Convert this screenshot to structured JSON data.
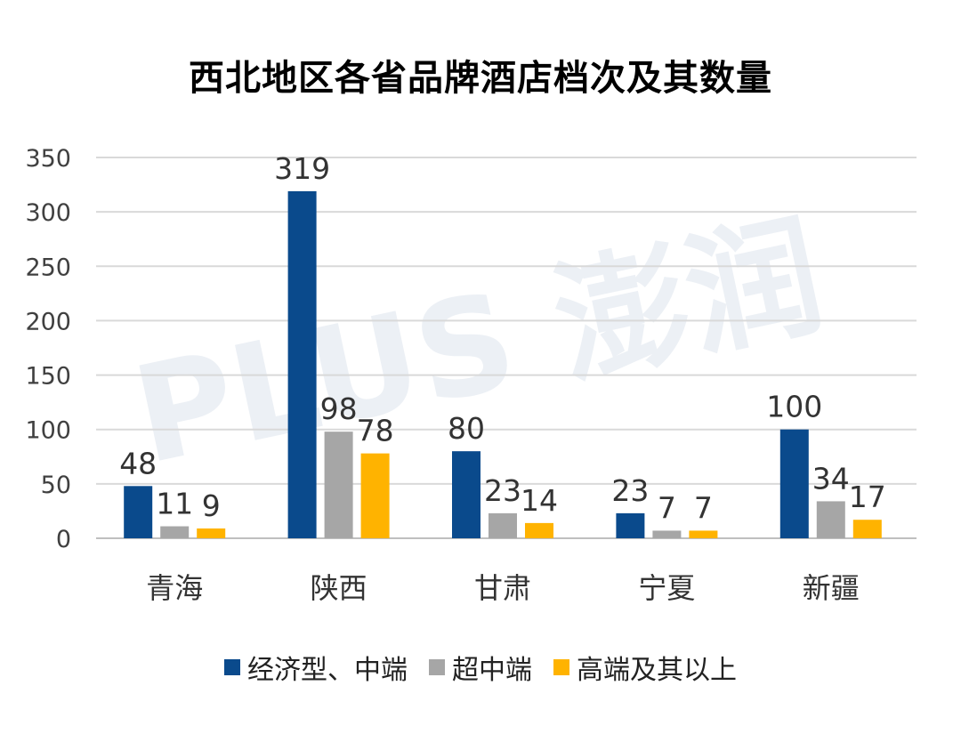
{
  "chart_data": {
    "type": "bar",
    "title": "西北地区各省品牌酒店档次及其数量",
    "categories": [
      "青海",
      "陕西",
      "甘肃",
      "宁夏",
      "新疆"
    ],
    "series": [
      {
        "name": "经济型、中端",
        "color": "#0a4a8c",
        "values": [
          48,
          319,
          80,
          23,
          100
        ]
      },
      {
        "name": "超中端",
        "color": "#a6a6a6",
        "values": [
          11,
          98,
          23,
          7,
          34
        ]
      },
      {
        "name": "高端及其以上",
        "color": "#ffb300",
        "values": [
          9,
          78,
          14,
          7,
          17
        ]
      }
    ],
    "ylim": [
      0,
      350
    ],
    "yticks": [
      0,
      50,
      100,
      150,
      200,
      250,
      300,
      350
    ],
    "grid": true,
    "legend_position": "bottom"
  },
  "watermark": "PLUS 澎润"
}
